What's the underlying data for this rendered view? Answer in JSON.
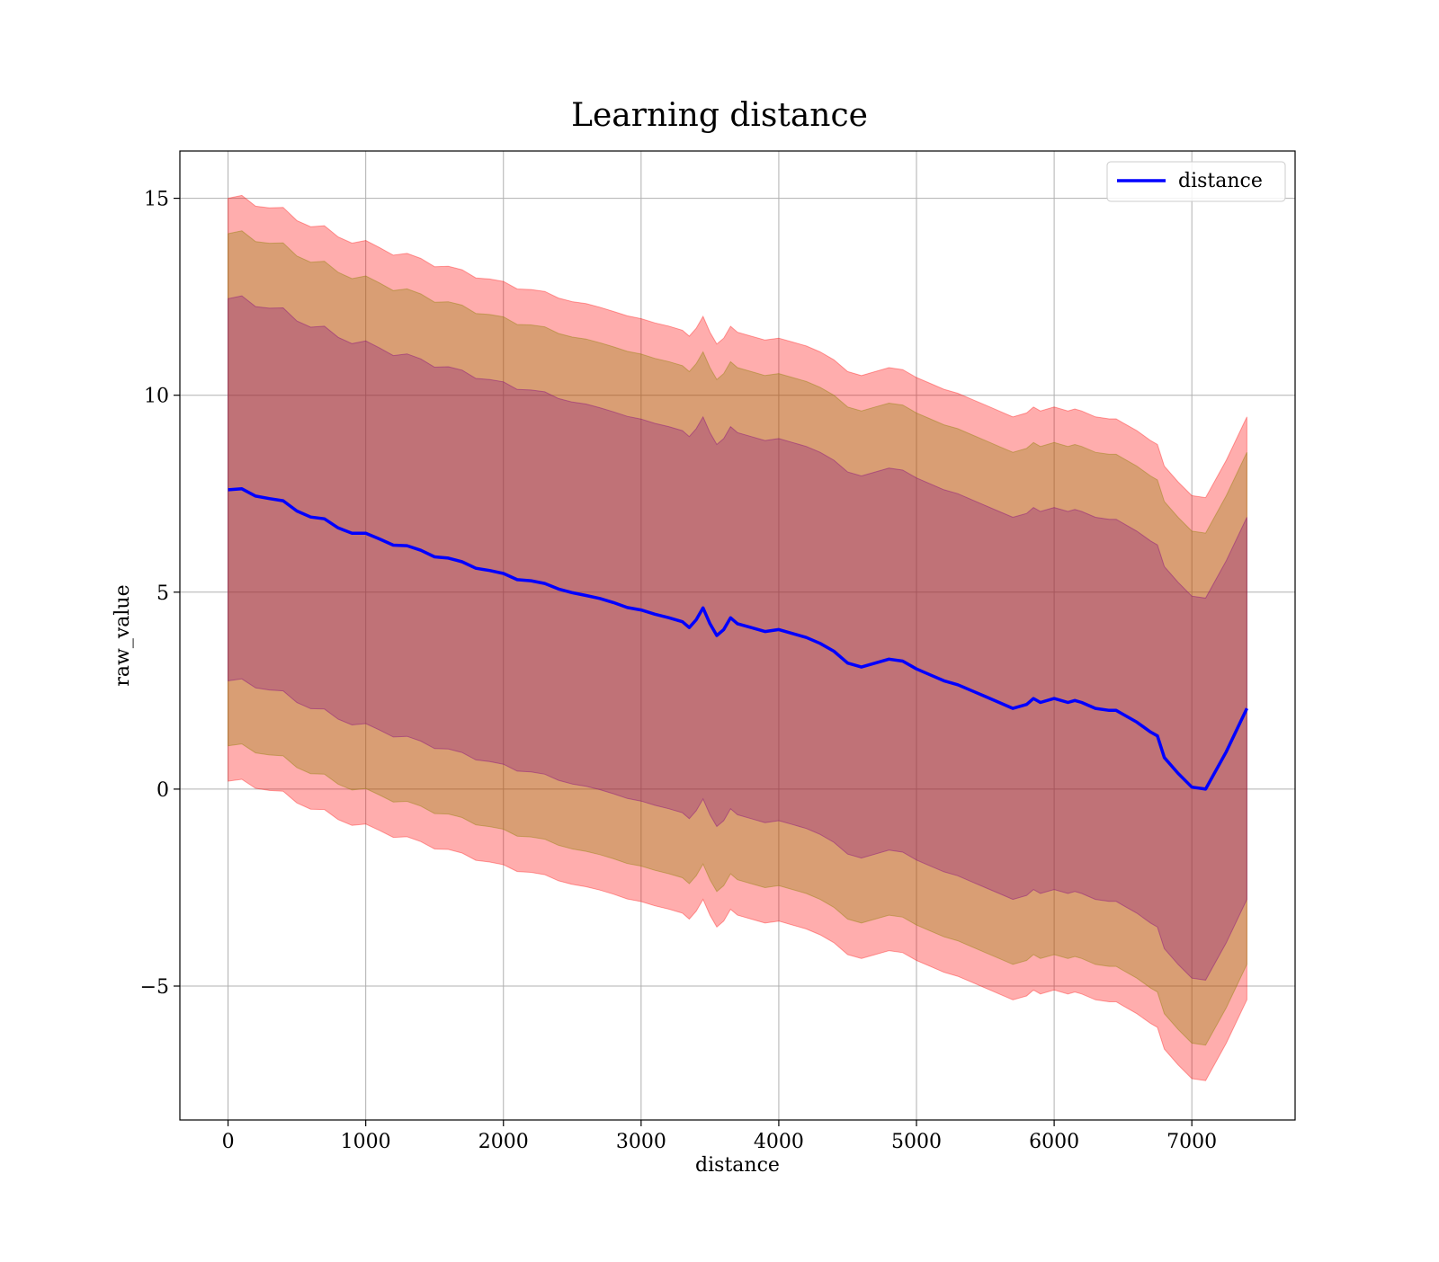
{
  "chart_data": {
    "type": "line",
    "title": "Learning distance",
    "xlabel": "distance",
    "ylabel": "raw_value",
    "xlim": [
      -350,
      7750
    ],
    "ylim": [
      -8.4,
      16.2
    ],
    "xticks": [
      0,
      1000,
      2000,
      3000,
      4000,
      5000,
      6000,
      7000
    ],
    "yticks": [
      -5,
      0,
      5,
      10,
      15
    ],
    "xtick_labels": [
      "0",
      "1000",
      "2000",
      "3000",
      "4000",
      "5000",
      "6000",
      "7000"
    ],
    "ytick_labels": [
      "−5",
      "0",
      "5",
      "10",
      "15"
    ],
    "grid": true,
    "legend": {
      "position": "top-right",
      "entries": [
        {
          "name": "distance",
          "color": "#0000ff"
        }
      ]
    },
    "colors": {
      "line": "#0000ff",
      "outer_band": "#ff0000",
      "middle_band": "#8b8000",
      "inner_band": "#800080"
    },
    "band_offsets": {
      "outer": [
        7.4,
        7.4
      ],
      "middle": [
        6.5,
        6.5
      ],
      "inner": [
        4.85,
        4.85
      ]
    },
    "series": [
      {
        "name": "distance",
        "x": [
          0,
          100,
          200,
          300,
          400,
          500,
          600,
          700,
          800,
          900,
          1000,
          1100,
          1200,
          1300,
          1400,
          1500,
          1600,
          1700,
          1800,
          1900,
          2000,
          2100,
          2200,
          2300,
          2400,
          2500,
          2600,
          2700,
          2800,
          2900,
          3000,
          3100,
          3200,
          3300,
          3350,
          3400,
          3450,
          3500,
          3550,
          3600,
          3650,
          3700,
          3800,
          3900,
          4000,
          4100,
          4200,
          4300,
          4400,
          4500,
          4600,
          4700,
          4800,
          4900,
          5000,
          5100,
          5200,
          5300,
          5400,
          5500,
          5600,
          5700,
          5800,
          5850,
          5900,
          6000,
          6100,
          6150,
          6200,
          6300,
          6400,
          6450,
          6500,
          6600,
          6700,
          6750,
          6800,
          6900,
          7000,
          7100,
          7250,
          7400
        ],
        "y": [
          7.6,
          7.55,
          7.5,
          7.4,
          7.25,
          7.1,
          6.95,
          6.8,
          6.65,
          6.55,
          6.45,
          6.35,
          6.25,
          6.15,
          6.05,
          5.95,
          5.85,
          5.75,
          5.65,
          5.55,
          5.45,
          5.35,
          5.3,
          5.2,
          5.1,
          5.0,
          4.9,
          4.85,
          4.75,
          4.6,
          4.55,
          4.45,
          4.35,
          4.25,
          4.1,
          4.3,
          4.6,
          4.2,
          3.9,
          4.05,
          4.35,
          4.2,
          4.1,
          4.0,
          4.05,
          3.95,
          3.85,
          3.7,
          3.5,
          3.2,
          3.1,
          3.2,
          3.3,
          3.25,
          3.05,
          2.9,
          2.75,
          2.65,
          2.5,
          2.35,
          2.2,
          2.05,
          2.15,
          2.3,
          2.2,
          2.3,
          2.2,
          2.25,
          2.2,
          2.05,
          2.0,
          2.0,
          1.9,
          1.7,
          1.45,
          1.35,
          0.8,
          0.4,
          0.05,
          0.0,
          0.95,
          2.05
        ]
      }
    ]
  }
}
